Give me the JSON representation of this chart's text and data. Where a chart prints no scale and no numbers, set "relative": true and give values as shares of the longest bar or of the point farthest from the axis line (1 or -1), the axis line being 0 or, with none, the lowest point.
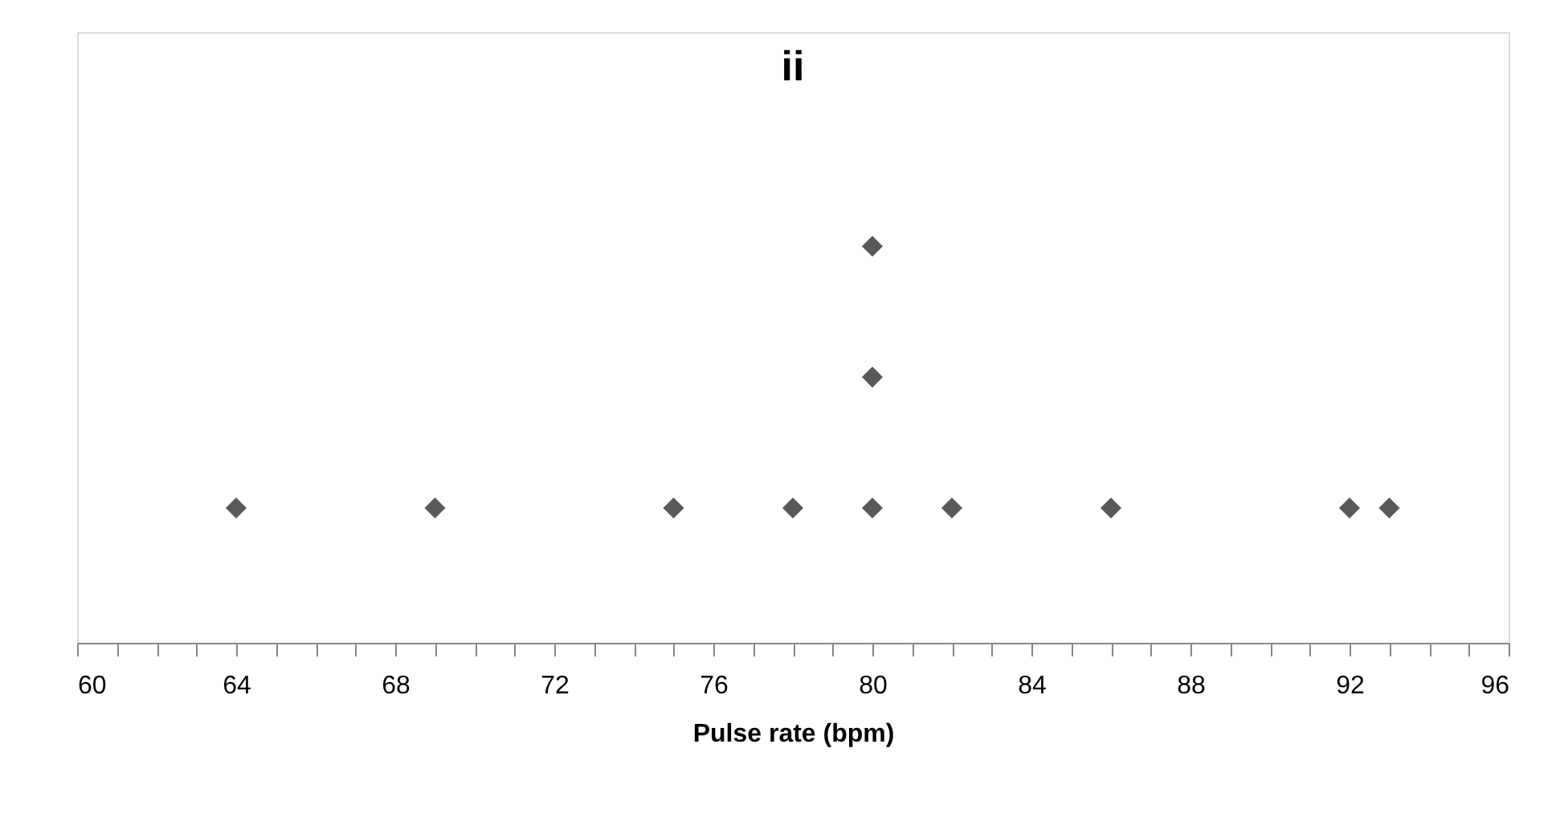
{
  "chart_data": {
    "type": "scatter",
    "title": "ii",
    "xlabel": "Pulse rate (bpm)",
    "relative": true,
    "marker": "diamond",
    "grid": false,
    "tick_labels": "x",
    "xlim": [
      60,
      96
    ],
    "xticks": [
      60,
      {
        "value": 61,
        "label": null
      },
      {
        "value": 62,
        "label": null
      },
      {
        "value": 63,
        "label": null
      },
      64,
      {
        "value": 65,
        "label": null
      },
      {
        "value": 66,
        "label": null
      },
      {
        "value": 67,
        "label": null
      },
      68,
      {
        "value": 69,
        "label": null
      },
      {
        "value": 70,
        "label": null
      },
      {
        "value": 71,
        "label": null
      },
      72,
      {
        "value": 73,
        "label": null
      },
      {
        "value": 74,
        "label": null
      },
      {
        "value": 75,
        "label": null
      },
      76,
      {
        "value": 77,
        "label": null
      },
      {
        "value": 78,
        "label": null
      },
      {
        "value": 79,
        "label": null
      },
      80,
      {
        "value": 81,
        "label": null
      },
      {
        "value": 82,
        "label": null
      },
      {
        "value": 83,
        "label": null
      },
      84,
      {
        "value": 85,
        "label": null
      },
      {
        "value": 86,
        "label": null
      },
      {
        "value": 87,
        "label": null
      },
      88,
      {
        "value": 89,
        "label": null
      },
      {
        "value": 90,
        "label": null
      },
      {
        "value": 91,
        "label": null
      },
      92,
      {
        "value": 93,
        "label": null
      },
      {
        "value": 94,
        "label": null
      },
      {
        "value": 95,
        "label": null
      },
      96
    ],
    "series": [
      {
        "color": "#595959",
        "x": [
          64,
          69,
          75,
          78,
          80,
          80,
          80,
          82,
          86,
          92,
          93
        ],
        "values": [
          0.34,
          0.34,
          0.34,
          0.34,
          0.34,
          0.67,
          1.0,
          0.34,
          0.34,
          0.34,
          0.34
        ]
      }
    ]
  }
}
